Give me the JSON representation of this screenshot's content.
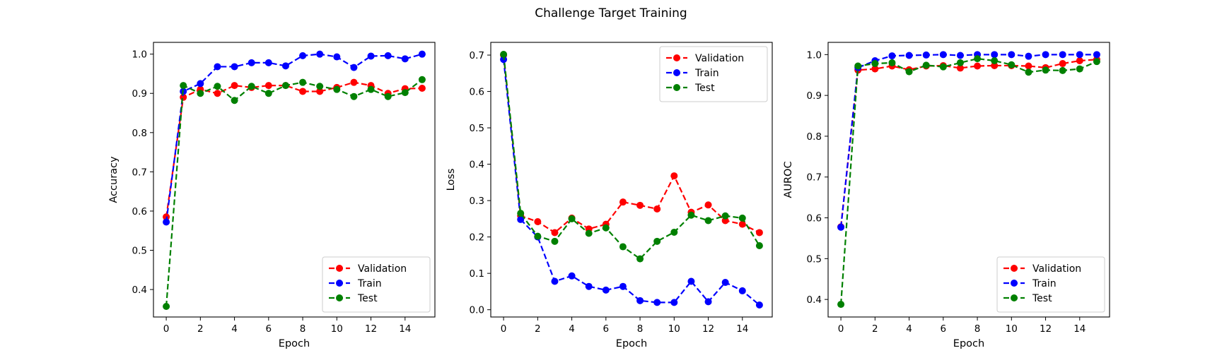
{
  "figure": {
    "title": "Challenge Target Training"
  },
  "chart_data": [
    {
      "type": "line",
      "title": "",
      "xlabel": "Epoch",
      "ylabel": "Accuracy",
      "xlim": [
        -0.75,
        15.75
      ],
      "ylim": [
        0.33,
        1.03
      ],
      "xticks": [
        0,
        2,
        4,
        6,
        8,
        10,
        12,
        14
      ],
      "yticks": [
        0.4,
        0.5,
        0.6,
        0.7,
        0.8,
        0.9,
        1.0
      ],
      "ytick_labels": [
        "0.4",
        "0.5",
        "0.6",
        "0.7",
        "0.8",
        "0.9",
        "1.0"
      ],
      "grid": false,
      "legend_position": "lower right",
      "x": [
        0,
        1,
        2,
        3,
        4,
        5,
        6,
        7,
        8,
        9,
        10,
        11,
        12,
        13,
        14,
        15
      ],
      "series": [
        {
          "name": "Validation",
          "color": "#ff0000",
          "values": [
            0.585,
            0.89,
            0.91,
            0.9,
            0.92,
            0.915,
            0.92,
            0.92,
            0.905,
            0.905,
            0.915,
            0.928,
            0.92,
            0.9,
            0.912,
            0.913
          ]
        },
        {
          "name": "Train",
          "color": "#0000ff",
          "values": [
            0.572,
            0.905,
            0.925,
            0.968,
            0.968,
            0.978,
            0.978,
            0.97,
            0.996,
            1.0,
            0.993,
            0.966,
            0.995,
            0.996,
            0.988,
            1.0
          ]
        },
        {
          "name": "Test",
          "color": "#008000",
          "values": [
            0.357,
            0.92,
            0.9,
            0.918,
            0.882,
            0.918,
            0.9,
            0.92,
            0.928,
            0.918,
            0.91,
            0.892,
            0.91,
            0.892,
            0.902,
            0.935
          ]
        }
      ]
    },
    {
      "type": "line",
      "title": "",
      "xlabel": "Epoch",
      "ylabel": "Loss",
      "xlim": [
        -0.75,
        15.75
      ],
      "ylim": [
        -0.02,
        0.735
      ],
      "xticks": [
        0,
        2,
        4,
        6,
        8,
        10,
        12,
        14
      ],
      "yticks": [
        0.0,
        0.1,
        0.2,
        0.3,
        0.4,
        0.5,
        0.6,
        0.7
      ],
      "ytick_labels": [
        "0.0",
        "0.1",
        "0.2",
        "0.3",
        "0.4",
        "0.5",
        "0.6",
        "0.7"
      ],
      "grid": false,
      "legend_position": "upper right",
      "x": [
        0,
        1,
        2,
        3,
        4,
        5,
        6,
        7,
        8,
        9,
        10,
        11,
        12,
        13,
        14,
        15
      ],
      "series": [
        {
          "name": "Validation",
          "color": "#ff0000",
          "values": [
            0.7,
            0.258,
            0.242,
            0.212,
            0.252,
            0.222,
            0.235,
            0.296,
            0.287,
            0.277,
            0.368,
            0.268,
            0.288,
            0.245,
            0.235,
            0.212
          ]
        },
        {
          "name": "Train",
          "color": "#0000ff",
          "values": [
            0.688,
            0.248,
            0.2,
            0.078,
            0.093,
            0.064,
            0.054,
            0.064,
            0.025,
            0.02,
            0.02,
            0.078,
            0.022,
            0.075,
            0.052,
            0.013
          ]
        },
        {
          "name": "Test",
          "color": "#008000",
          "values": [
            0.702,
            0.265,
            0.202,
            0.188,
            0.25,
            0.21,
            0.225,
            0.173,
            0.14,
            0.188,
            0.213,
            0.26,
            0.245,
            0.258,
            0.252,
            0.176
          ]
        }
      ]
    },
    {
      "type": "line",
      "title": "",
      "xlabel": "Epoch",
      "ylabel": "AUROC",
      "xlim": [
        -0.75,
        15.75
      ],
      "ylim": [
        0.357,
        1.03
      ],
      "xticks": [
        0,
        2,
        4,
        6,
        8,
        10,
        12,
        14
      ],
      "yticks": [
        0.4,
        0.5,
        0.6,
        0.7,
        0.8,
        0.9,
        1.0
      ],
      "ytick_labels": [
        "0.4",
        "0.5",
        "0.6",
        "0.7",
        "0.8",
        "0.9",
        "1.0"
      ],
      "grid": false,
      "legend_position": "lower right",
      "x": [
        0,
        1,
        2,
        3,
        4,
        5,
        6,
        7,
        8,
        9,
        10,
        11,
        12,
        13,
        14,
        15
      ],
      "series": [
        {
          "name": "Validation",
          "color": "#ff0000",
          "values": [
            0.578,
            0.962,
            0.965,
            0.972,
            0.963,
            0.972,
            0.973,
            0.967,
            0.972,
            0.973,
            0.973,
            0.972,
            0.968,
            0.978,
            0.985,
            0.988
          ]
        },
        {
          "name": "Train",
          "color": "#0000ff",
          "values": [
            0.577,
            0.968,
            0.985,
            0.997,
            0.998,
            0.999,
            1.0,
            0.998,
            1.0,
            1.0,
            1.0,
            0.996,
            1.0,
            1.0,
            1.0,
            1.0
          ]
        },
        {
          "name": "Test",
          "color": "#008000",
          "values": [
            0.388,
            0.972,
            0.978,
            0.98,
            0.958,
            0.974,
            0.97,
            0.98,
            0.99,
            0.985,
            0.975,
            0.957,
            0.962,
            0.961,
            0.965,
            0.983
          ]
        }
      ]
    }
  ]
}
